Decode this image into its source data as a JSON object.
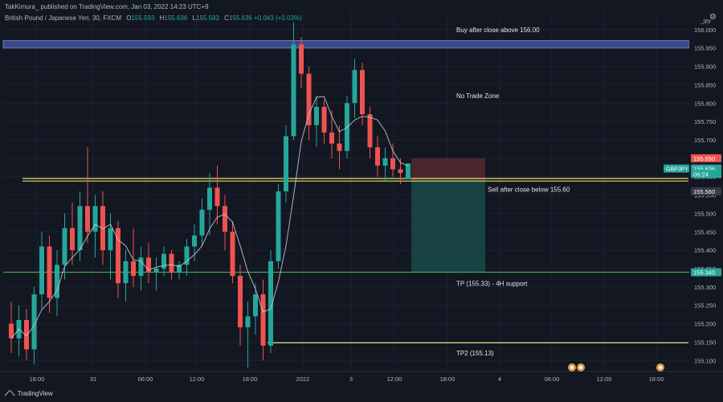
{
  "header": {
    "publisher": "TakKimura_ published on TradingView.com, Jan 03, 2022 14:23 UTC+9"
  },
  "symbol": {
    "name": "British Pound / Japanese Yen, 30, FXCM",
    "open_label": "O",
    "open": "155.593",
    "high_label": "H",
    "high": "155.636",
    "low_label": "L",
    "low": "155.593",
    "close_label": "C",
    "close": "155.636",
    "change": "+0.043 (+0.03%)"
  },
  "axis_caption": "_jpy",
  "footer": {
    "brand": "TradingView"
  },
  "colors": {
    "background": "#131722",
    "up": "#26a69a",
    "down": "#ef5350",
    "ma": "#c9cbd1",
    "zone_blue": "#3f5296",
    "yellow": "#e8e069",
    "green_line": "#4caf50",
    "stop_zone": "#5a2a31",
    "target_zone": "#1a4a4a"
  },
  "chart_data": {
    "type": "candlestick",
    "symbol": "GBPJPY",
    "timeframe": "30",
    "ylim": [
      155.07,
      156.05
    ],
    "y_ticks": [
      156.0,
      155.95,
      155.9,
      155.85,
      155.8,
      155.75,
      155.7,
      155.65,
      155.6,
      155.55,
      155.5,
      155.45,
      155.4,
      155.35,
      155.3,
      155.25,
      155.2,
      155.15,
      155.1
    ],
    "x_ticks": [
      "18:00",
      "31",
      "06:00",
      "12:00",
      "18:00",
      "2022",
      "3",
      "12:00",
      "18:00",
      "4",
      "06:00",
      "12:00",
      "18:00"
    ],
    "price_labels": [
      {
        "text": "155.650",
        "color": "#ef5350"
      },
      {
        "text": "155.636",
        "color": "#26a69a"
      },
      {
        "text": "06:24",
        "color": "#26a69a"
      },
      {
        "text": "155.560",
        "color": "#363a45"
      },
      {
        "text": "155.340",
        "color": "#26a69a"
      }
    ],
    "symbol_tag": "GBPJPY",
    "candles": [
      {
        "o": 155.2,
        "h": 155.26,
        "l": 155.12,
        "c": 155.16
      },
      {
        "o": 155.16,
        "h": 155.25,
        "l": 155.11,
        "c": 155.21
      },
      {
        "o": 155.21,
        "h": 155.24,
        "l": 155.1,
        "c": 155.13
      },
      {
        "o": 155.13,
        "h": 155.3,
        "l": 155.09,
        "c": 155.28
      },
      {
        "o": 155.28,
        "h": 155.45,
        "l": 155.24,
        "c": 155.41
      },
      {
        "o": 155.41,
        "h": 155.44,
        "l": 155.23,
        "c": 155.27
      },
      {
        "o": 155.27,
        "h": 155.4,
        "l": 155.22,
        "c": 155.36
      },
      {
        "o": 155.36,
        "h": 155.5,
        "l": 155.32,
        "c": 155.46
      },
      {
        "o": 155.46,
        "h": 155.53,
        "l": 155.36,
        "c": 155.4
      },
      {
        "o": 155.4,
        "h": 155.56,
        "l": 155.37,
        "c": 155.52
      },
      {
        "o": 155.52,
        "h": 155.68,
        "l": 155.42,
        "c": 155.45
      },
      {
        "o": 155.45,
        "h": 155.55,
        "l": 155.38,
        "c": 155.52
      },
      {
        "o": 155.52,
        "h": 155.56,
        "l": 155.36,
        "c": 155.4
      },
      {
        "o": 155.4,
        "h": 155.5,
        "l": 155.32,
        "c": 155.46
      },
      {
        "o": 155.46,
        "h": 155.48,
        "l": 155.27,
        "c": 155.31
      },
      {
        "o": 155.31,
        "h": 155.4,
        "l": 155.26,
        "c": 155.37
      },
      {
        "o": 155.37,
        "h": 155.46,
        "l": 155.3,
        "c": 155.33
      },
      {
        "o": 155.33,
        "h": 155.41,
        "l": 155.29,
        "c": 155.38
      },
      {
        "o": 155.38,
        "h": 155.42,
        "l": 155.31,
        "c": 155.34
      },
      {
        "o": 155.34,
        "h": 155.38,
        "l": 155.29,
        "c": 155.35
      },
      {
        "o": 155.35,
        "h": 155.41,
        "l": 155.33,
        "c": 155.39
      },
      {
        "o": 155.39,
        "h": 155.4,
        "l": 155.32,
        "c": 155.34
      },
      {
        "o": 155.34,
        "h": 155.37,
        "l": 155.32,
        "c": 155.36
      },
      {
        "o": 155.36,
        "h": 155.43,
        "l": 155.33,
        "c": 155.41
      },
      {
        "o": 155.41,
        "h": 155.47,
        "l": 155.37,
        "c": 155.44
      },
      {
        "o": 155.44,
        "h": 155.54,
        "l": 155.41,
        "c": 155.51
      },
      {
        "o": 155.51,
        "h": 155.61,
        "l": 155.44,
        "c": 155.57
      },
      {
        "o": 155.57,
        "h": 155.63,
        "l": 155.47,
        "c": 155.52
      },
      {
        "o": 155.52,
        "h": 155.55,
        "l": 155.4,
        "c": 155.45
      },
      {
        "o": 155.45,
        "h": 155.48,
        "l": 155.31,
        "c": 155.33
      },
      {
        "o": 155.33,
        "h": 155.36,
        "l": 155.14,
        "c": 155.19
      },
      {
        "o": 155.19,
        "h": 155.26,
        "l": 155.08,
        "c": 155.22
      },
      {
        "o": 155.22,
        "h": 155.31,
        "l": 155.17,
        "c": 155.28
      },
      {
        "o": 155.28,
        "h": 155.32,
        "l": 155.1,
        "c": 155.14
      },
      {
        "o": 155.14,
        "h": 155.4,
        "l": 155.12,
        "c": 155.37
      },
      {
        "o": 155.37,
        "h": 155.58,
        "l": 155.35,
        "c": 155.56
      },
      {
        "o": 155.56,
        "h": 155.74,
        "l": 155.53,
        "c": 155.71
      },
      {
        "o": 155.71,
        "h": 156.02,
        "l": 155.7,
        "c": 155.96
      },
      {
        "o": 155.96,
        "h": 155.98,
        "l": 155.84,
        "c": 155.88
      },
      {
        "o": 155.88,
        "h": 155.9,
        "l": 155.7,
        "c": 155.74
      },
      {
        "o": 155.74,
        "h": 155.82,
        "l": 155.68,
        "c": 155.79
      },
      {
        "o": 155.79,
        "h": 155.81,
        "l": 155.69,
        "c": 155.72
      },
      {
        "o": 155.72,
        "h": 155.78,
        "l": 155.65,
        "c": 155.69
      },
      {
        "o": 155.69,
        "h": 155.74,
        "l": 155.62,
        "c": 155.67
      },
      {
        "o": 155.67,
        "h": 155.82,
        "l": 155.65,
        "c": 155.8
      },
      {
        "o": 155.8,
        "h": 155.92,
        "l": 155.76,
        "c": 155.89
      },
      {
        "o": 155.89,
        "h": 155.91,
        "l": 155.74,
        "c": 155.77
      },
      {
        "o": 155.77,
        "h": 155.79,
        "l": 155.65,
        "c": 155.68
      },
      {
        "o": 155.68,
        "h": 155.71,
        "l": 155.6,
        "c": 155.63
      },
      {
        "o": 155.63,
        "h": 155.68,
        "l": 155.59,
        "c": 155.65
      },
      {
        "o": 155.65,
        "h": 155.69,
        "l": 155.6,
        "c": 155.62
      },
      {
        "o": 155.62,
        "h": 155.65,
        "l": 155.58,
        "c": 155.61
      },
      {
        "o": 155.593,
        "h": 155.636,
        "l": 155.593,
        "c": 155.636
      }
    ],
    "horizontal_zones": [
      {
        "name": "blue-resistance-zone",
        "y1": 155.95,
        "y2": 155.97,
        "color": "#3f5296"
      }
    ],
    "horizontal_lines": [
      {
        "name": "yellow-upper-line",
        "y": 155.595,
        "color": "#e8e069"
      },
      {
        "name": "yellow-lower-line",
        "y": 155.588,
        "color": "#e8e069"
      },
      {
        "name": "green-tp-line",
        "y": 155.34,
        "color": "#4caf50"
      },
      {
        "name": "yellow-tp2-line",
        "y": 155.148,
        "color": "#e8e069"
      }
    ],
    "position_box": {
      "entry": 155.59,
      "stop": 155.65,
      "target": 155.34
    },
    "annotations": [
      {
        "text": "Buy after close above 156.00",
        "y": 156.0
      },
      {
        "text": "No Trade Zone",
        "y": 155.82
      },
      {
        "text": "Sell after close below 155.60",
        "y": 155.565
      },
      {
        "text": "TP (155.33) - 4H support",
        "y": 155.31
      },
      {
        "text": "TP2 (155.13)",
        "y": 155.12
      }
    ]
  }
}
